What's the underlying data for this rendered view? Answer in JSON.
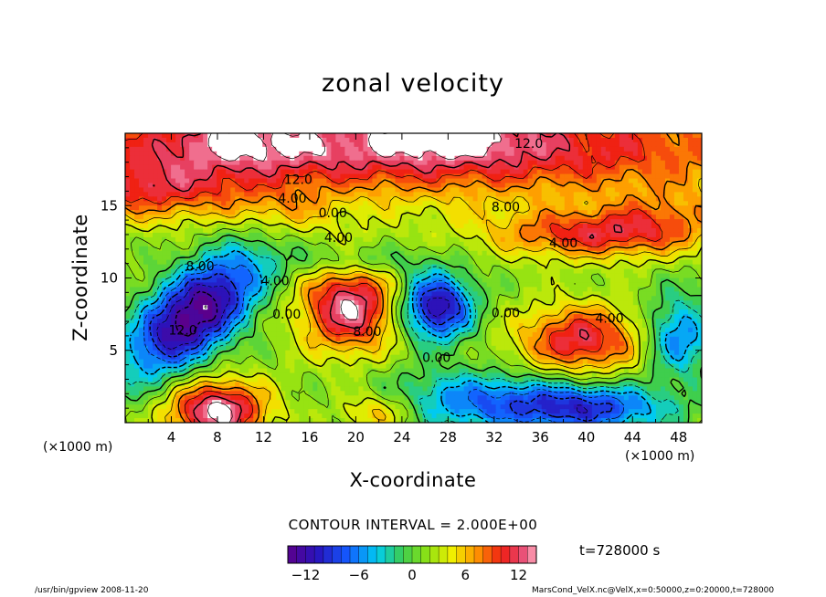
{
  "chart_data": {
    "type": "heatmap",
    "title": "zonal velocity",
    "xlabel": "X-coordinate",
    "ylabel": "Z-coordinate",
    "x_unit": "(×1000 m)",
    "y_unit": "(×1000 m)",
    "xlim": [
      0,
      50
    ],
    "ylim": [
      0,
      20
    ],
    "x_ticks": [
      "4",
      "8",
      "12",
      "16",
      "20",
      "24",
      "28",
      "32",
      "36",
      "40",
      "44",
      "48"
    ],
    "y_ticks": [
      "5",
      "10",
      "15"
    ],
    "contour_interval": "CONTOUR INTERVAL = 2.000E+00",
    "time_label": "t=728000 s",
    "colorbar": {
      "min": -14,
      "max": 14,
      "ticks": [
        "−12",
        "−6",
        "0",
        "6",
        "12"
      ]
    },
    "contour_labels": [
      {
        "text": "12.0",
        "x": 35,
        "y": 19.0
      },
      {
        "text": "12.0",
        "x": 15,
        "y": 16.5
      },
      {
        "text": "4.00",
        "x": 14.5,
        "y": 15.2
      },
      {
        "text": "0.00",
        "x": 18,
        "y": 14.2
      },
      {
        "text": "8.00",
        "x": 33,
        "y": 14.6
      },
      {
        "text": "4.00",
        "x": 18.5,
        "y": 12.5
      },
      {
        "text": "4.00",
        "x": 38,
        "y": 12.1
      },
      {
        "text": "8.00",
        "x": 6.5,
        "y": 10.5
      },
      {
        "text": "4.00",
        "x": 13,
        "y": 9.5
      },
      {
        "text": "0.00",
        "x": 14,
        "y": 7.2
      },
      {
        "text": "8.00",
        "x": 21,
        "y": 6.0
      },
      {
        "text": "0.00",
        "x": 33,
        "y": 7.3
      },
      {
        "text": "4.00",
        "x": 42,
        "y": 6.9
      },
      {
        "text": "12.0",
        "x": 5,
        "y": 6.1
      },
      {
        "text": "0.00",
        "x": 27,
        "y": 4.2
      }
    ],
    "field": {
      "background": 2,
      "features": [
        {
          "x": 6,
          "y": 7.5,
          "sx": 4.5,
          "sy": 2.0,
          "value": -16,
          "tilt": 0.55
        },
        {
          "x": 27,
          "y": 8.0,
          "sx": 2.2,
          "sy": 1.6,
          "value": -14
        },
        {
          "x": 30,
          "y": 1.5,
          "sx": 6.0,
          "sy": 1.5,
          "value": -7
        },
        {
          "x": 40,
          "y": 1.0,
          "sx": 5.0,
          "sy": 1.2,
          "value": -10
        },
        {
          "x": 48,
          "y": 6.0,
          "sx": 2.0,
          "sy": 2.0,
          "value": -8
        },
        {
          "x": 20,
          "y": 11.2,
          "sx": 4.0,
          "sy": 0.8,
          "value": -4
        },
        {
          "x": 19.5,
          "y": 8.0,
          "sx": 3.0,
          "sy": 2.2,
          "value": 12
        },
        {
          "x": 39.5,
          "y": 5.7,
          "sx": 3.8,
          "sy": 1.7,
          "value": 10
        },
        {
          "x": 8,
          "y": 0.8,
          "sx": 3.0,
          "sy": 1.5,
          "value": 13
        },
        {
          "x": 22,
          "y": 0.8,
          "sx": 2.5,
          "sy": 1.0,
          "value": 6
        },
        {
          "x": 25,
          "y": 19.0,
          "sx": 25.0,
          "sy": 2.5,
          "value": 11
        },
        {
          "x": 10,
          "y": 19.5,
          "sx": 5.0,
          "sy": 1.2,
          "value": 4
        },
        {
          "x": 28,
          "y": 19.8,
          "sx": 4.0,
          "sy": 1.0,
          "value": 4
        },
        {
          "x": 2,
          "y": 16,
          "sx": 6.0,
          "sy": 1.5,
          "value": 6
        },
        {
          "x": 40,
          "y": 13.0,
          "sx": 6.0,
          "sy": 1.2,
          "value": 8
        },
        {
          "x": 47,
          "y": 14.0,
          "sx": 4.0,
          "sy": 1.5,
          "value": 4
        },
        {
          "x": 14,
          "y": 14.5,
          "sx": 3.0,
          "sy": 1.2,
          "value": 3
        }
      ]
    }
  },
  "footer": {
    "left": "/usr/bin/gpview  2008-11-20",
    "right": "MarsCond_VelX.nc@VelX,x=0:50000,z=0:20000,t=728000"
  },
  "colors": {
    "frame": "#000000",
    "background": "#ffffff"
  }
}
